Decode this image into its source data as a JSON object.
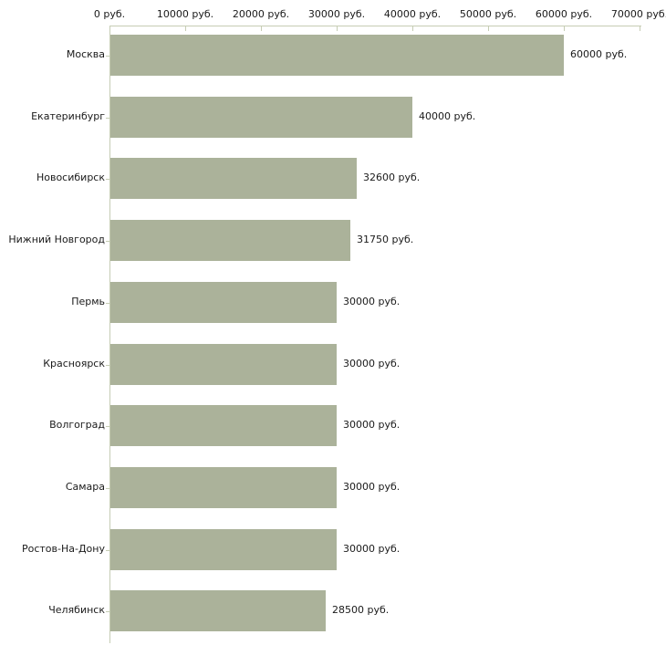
{
  "chart_data": {
    "type": "bar",
    "orientation": "horizontal",
    "title": "",
    "xlabel": "",
    "ylabel": "",
    "unit": "руб.",
    "categories": [
      "Москва",
      "Екатеринбург",
      "Новосибирск",
      "Нижний Новгород",
      "Пермь",
      "Красноярск",
      "Волгоград",
      "Самара",
      "Ростов-На-Дону",
      "Челябинск"
    ],
    "values": [
      60000,
      40000,
      32600,
      31750,
      30000,
      30000,
      30000,
      30000,
      30000,
      28500
    ],
    "value_labels": [
      "60000 руб.",
      "40000 руб.",
      "32600 руб.",
      "31750 руб.",
      "30000 руб.",
      "30000 руб.",
      "30000 руб.",
      "30000 руб.",
      "30000 руб.",
      "28500 руб."
    ],
    "x_axis": {
      "position": "top",
      "min": 0,
      "max": 70000,
      "tick_values": [
        0,
        10000,
        20000,
        30000,
        40000,
        50000,
        60000,
        70000
      ],
      "tick_labels": [
        "0 руб.",
        "10000 руб.",
        "20000 руб.",
        "30000 руб.",
        "40000 руб.",
        "50000 руб.",
        "60000 руб.",
        "70000 руб."
      ]
    },
    "grid": false,
    "legend": false,
    "colors": {
      "bar": "#abb29a",
      "axis": "#c6cdb4",
      "text": "#1a1a1a",
      "background": "#ffffff"
    }
  }
}
